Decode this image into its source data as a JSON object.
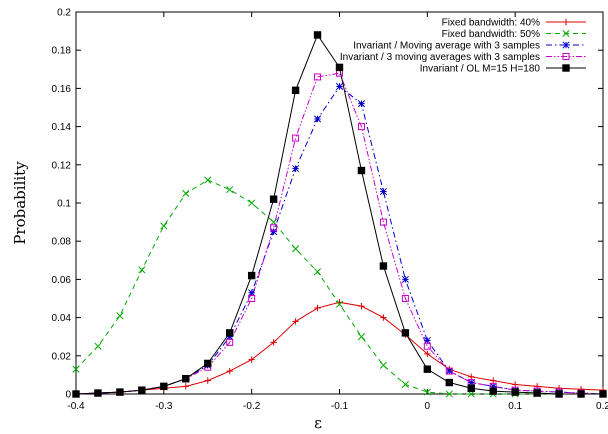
{
  "chart_data": {
    "type": "line",
    "title": "",
    "xlabel": "ε",
    "ylabel": "Probability",
    "xlim": [
      -0.4,
      0.2
    ],
    "ylim": [
      0,
      0.2
    ],
    "x_ticks": [
      "-0.4",
      "-0.3",
      "-0.2",
      "-0.1",
      "0",
      "0.1",
      "0.2"
    ],
    "y_ticks": [
      "0",
      "0.02",
      "0.04",
      "0.06",
      "0.08",
      "0.1",
      "0.12",
      "0.14",
      "0.16",
      "0.18",
      "0.2"
    ],
    "grid": false,
    "legend_position": "top-right",
    "series": [
      {
        "name": "Fixed bandwidth: 40%",
        "color": "#dd0000",
        "dash": "solid",
        "marker": "plus",
        "x": [
          -0.4,
          -0.375,
          -0.35,
          -0.325,
          -0.3,
          -0.275,
          -0.25,
          -0.225,
          -0.2,
          -0.175,
          -0.15,
          -0.125,
          -0.1,
          -0.075,
          -0.05,
          -0.025,
          0,
          0.025,
          0.05,
          0.075,
          0.1,
          0.125,
          0.15,
          0.175,
          0.2
        ],
        "y": [
          0.0,
          0.0005,
          0.001,
          0.002,
          0.003,
          0.004,
          0.007,
          0.012,
          0.018,
          0.027,
          0.038,
          0.045,
          0.048,
          0.046,
          0.04,
          0.031,
          0.021,
          0.013,
          0.009,
          0.007,
          0.005,
          0.004,
          0.003,
          0.0025,
          0.002
        ]
      },
      {
        "name": "Fixed bandwidth: 50%",
        "color": "#00aa00",
        "dash": "dashed",
        "marker": "x",
        "x": [
          -0.4,
          -0.375,
          -0.35,
          -0.325,
          -0.3,
          -0.275,
          -0.25,
          -0.225,
          -0.2,
          -0.175,
          -0.15,
          -0.125,
          -0.1,
          -0.075,
          -0.05,
          -0.025,
          0,
          0.025,
          0.05,
          0.075,
          0.1,
          0.125,
          0.15,
          0.175,
          0.2
        ],
        "y": [
          0.013,
          0.025,
          0.041,
          0.065,
          0.088,
          0.105,
          0.112,
          0.107,
          0.1,
          0.09,
          0.076,
          0.064,
          0.047,
          0.03,
          0.015,
          0.005,
          0.001,
          0.0,
          0.0,
          0.0,
          0.0,
          0.0,
          0.0,
          0.0,
          0.0
        ]
      },
      {
        "name": "Invariant / Moving average with 3 samples",
        "color": "#0000cc",
        "dash": "dashdot",
        "marker": "star",
        "x": [
          -0.4,
          -0.375,
          -0.35,
          -0.325,
          -0.3,
          -0.275,
          -0.25,
          -0.225,
          -0.2,
          -0.175,
          -0.15,
          -0.125,
          -0.1,
          -0.075,
          -0.05,
          -0.025,
          0,
          0.025,
          0.05,
          0.075,
          0.1,
          0.125,
          0.15,
          0.175,
          0.2
        ],
        "y": [
          0.0,
          0.0005,
          0.001,
          0.002,
          0.004,
          0.008,
          0.015,
          0.03,
          0.053,
          0.085,
          0.118,
          0.144,
          0.161,
          0.152,
          0.106,
          0.06,
          0.028,
          0.012,
          0.006,
          0.004,
          0.002,
          0.0015,
          0.001,
          0.0005,
          0.0
        ]
      },
      {
        "name": "Invariant / 3 moving averages with 3 samples",
        "color": "#cc00cc",
        "dash": "dashdotdot",
        "marker": "square-open",
        "x": [
          -0.4,
          -0.375,
          -0.35,
          -0.325,
          -0.3,
          -0.275,
          -0.25,
          -0.225,
          -0.2,
          -0.175,
          -0.15,
          -0.125,
          -0.1,
          -0.075,
          -0.05,
          -0.025,
          0,
          0.025,
          0.05,
          0.075,
          0.1,
          0.125,
          0.15,
          0.175,
          0.2
        ],
        "y": [
          0.0,
          0.0005,
          0.001,
          0.002,
          0.004,
          0.008,
          0.014,
          0.027,
          0.05,
          0.087,
          0.134,
          0.166,
          0.168,
          0.14,
          0.09,
          0.05,
          0.025,
          0.012,
          0.006,
          0.004,
          0.002,
          0.0015,
          0.001,
          0.0005,
          0.0
        ]
      },
      {
        "name": "Invariant / OL M=15 H=180",
        "color": "#000000",
        "dash": "solid",
        "marker": "square-filled",
        "x": [
          -0.4,
          -0.375,
          -0.35,
          -0.325,
          -0.3,
          -0.275,
          -0.25,
          -0.225,
          -0.2,
          -0.175,
          -0.15,
          -0.125,
          -0.1,
          -0.075,
          -0.05,
          -0.025,
          0,
          0.025,
          0.05,
          0.075,
          0.1,
          0.125,
          0.15,
          0.175,
          0.2
        ],
        "y": [
          0.0,
          0.0005,
          0.001,
          0.002,
          0.004,
          0.008,
          0.016,
          0.032,
          0.062,
          0.102,
          0.159,
          0.188,
          0.171,
          0.117,
          0.067,
          0.032,
          0.013,
          0.006,
          0.003,
          0.0015,
          0.001,
          0.0005,
          0.0,
          0.0,
          0.0
        ]
      }
    ]
  }
}
